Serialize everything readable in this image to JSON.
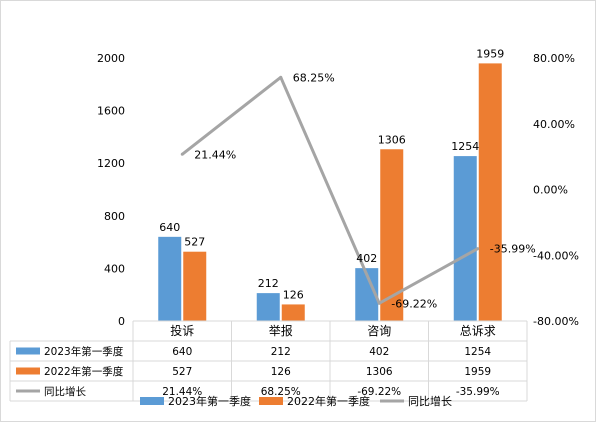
{
  "chart_data": {
    "type": "bar",
    "categories": [
      "投诉",
      "举报",
      "咨询",
      "总诉求"
    ],
    "series": [
      {
        "name": "2023年第一季度",
        "kind": "bar",
        "axis": "left",
        "color": "#5b9bd5",
        "values": [
          640,
          212,
          402,
          1254
        ]
      },
      {
        "name": "2022年第一季度",
        "kind": "bar",
        "axis": "left",
        "color": "#ed7d31",
        "values": [
          527,
          126,
          1306,
          1959
        ]
      },
      {
        "name": "同比增长",
        "kind": "line",
        "axis": "right",
        "color": "#a5a5a5",
        "values": [
          21.44,
          68.25,
          -69.22,
          -35.99
        ]
      }
    ],
    "data_labels": {
      "bars": [
        [
          "640",
          "212",
          "402",
          "1254"
        ],
        [
          "527",
          "126",
          "1306",
          "1959"
        ]
      ],
      "line": [
        "21.44%",
        "68.25%",
        "-69.22%",
        "-35.99%"
      ]
    },
    "y_left": {
      "min": 0,
      "max": 2000,
      "ticks": [
        "0",
        "400",
        "800",
        "1200",
        "1600",
        "2000"
      ]
    },
    "y_right": {
      "min": -80,
      "max": 80,
      "ticks": [
        "-80.00%",
        "-40.00%",
        "0.00%",
        "40.00%",
        "80.00%"
      ]
    },
    "data_table": {
      "rows": [
        {
          "label": "2023年第一季度",
          "cells": [
            "640",
            "212",
            "402",
            "1254"
          ]
        },
        {
          "label": "2022年第一季度",
          "cells": [
            "527",
            "126",
            "1306",
            "1959"
          ]
        },
        {
          "label": "同比增长",
          "cells": [
            "21.44%",
            "68.25%",
            "-69.22%",
            "-35.99%"
          ]
        }
      ]
    },
    "legend": {
      "position": "bottom",
      "items": [
        "2023年第一季度",
        "2022年第一季度",
        "同比增长"
      ]
    },
    "grid": false
  }
}
